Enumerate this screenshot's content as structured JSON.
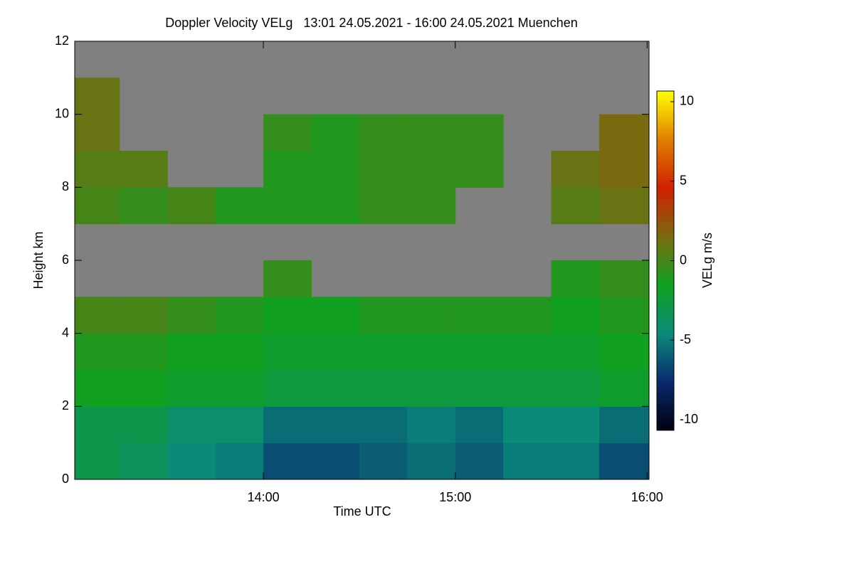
{
  "chart_data": {
    "type": "heatmap",
    "title": "Doppler Velocity VELg   13:01 24.05.2021 - 16:00 24.05.2021 Muenchen",
    "xlabel": "Time UTC",
    "ylabel": "Height km",
    "colorbar_label": "VELg m/s",
    "xlim": [
      13.0167,
      16.01
    ],
    "ylim": [
      0,
      12
    ],
    "xticks": [
      {
        "value": 14,
        "label": "14:00"
      },
      {
        "value": 15,
        "label": "15:00"
      },
      {
        "value": 16,
        "label": "16:00"
      }
    ],
    "yticks": [
      0,
      2,
      4,
      6,
      8,
      10,
      12
    ],
    "clim": [
      -10.67,
      10.67
    ],
    "cticks": [
      -10,
      -5,
      0,
      5,
      10
    ],
    "colormap": [
      "#000010",
      "#0a2a6e",
      "#0a8a7a",
      "#10a020",
      "#7a6a10",
      "#d02000",
      "#e08000",
      "#ffff00"
    ],
    "background": "#808080",
    "xbins": [
      13.0167,
      13.25,
      13.5,
      13.75,
      14,
      14.25,
      14.5,
      14.75,
      15,
      15.25,
      15.5,
      15.75,
      16.01
    ],
    "ybins": [
      0,
      1,
      2,
      3,
      4,
      5,
      6,
      7,
      8,
      9,
      10,
      11,
      12
    ],
    "z": [
      [
        -3,
        -3.5,
        -4.5,
        -5,
        -6.5,
        -6.5,
        -6,
        -5.5,
        -6,
        -5,
        -5,
        -6.5
      ],
      [
        -3,
        -3,
        -4,
        -4,
        -5.5,
        -5.5,
        -5.5,
        -5,
        -5.5,
        -4.5,
        -4.5,
        -5.5
      ],
      [
        -1.5,
        -1.5,
        -2,
        -2,
        -2.5,
        -2.5,
        -2.5,
        -2.5,
        -2.5,
        -2.5,
        -2.5,
        -2
      ],
      [
        -1,
        -1,
        -1.5,
        -1.5,
        -2,
        -2,
        -2,
        -2,
        -2,
        -2,
        -2,
        -1.5
      ],
      [
        0,
        0,
        -0.5,
        -1,
        -1.5,
        -1.5,
        -1,
        -1,
        -1,
        -1,
        -1.5,
        -1
      ],
      [
        null,
        null,
        null,
        null,
        -0.5,
        null,
        null,
        null,
        null,
        null,
        -1,
        -0.5
      ],
      [
        null,
        null,
        null,
        null,
        null,
        null,
        null,
        null,
        null,
        null,
        null,
        null
      ],
      [
        0,
        -0.5,
        0,
        -1,
        -1,
        -1,
        -0.5,
        -0.5,
        null,
        null,
        0.5,
        1
      ],
      [
        0.5,
        0.5,
        null,
        null,
        -1,
        -1,
        -0.5,
        -0.5,
        -0.5,
        null,
        1,
        1.5
      ],
      [
        1,
        null,
        null,
        null,
        -0.5,
        -1,
        -0.5,
        -0.5,
        -0.5,
        null,
        null,
        1.5
      ],
      [
        1,
        null,
        null,
        null,
        null,
        null,
        null,
        null,
        null,
        null,
        null,
        null
      ],
      [
        null,
        null,
        null,
        null,
        null,
        null,
        null,
        null,
        null,
        null,
        null,
        null
      ]
    ]
  }
}
